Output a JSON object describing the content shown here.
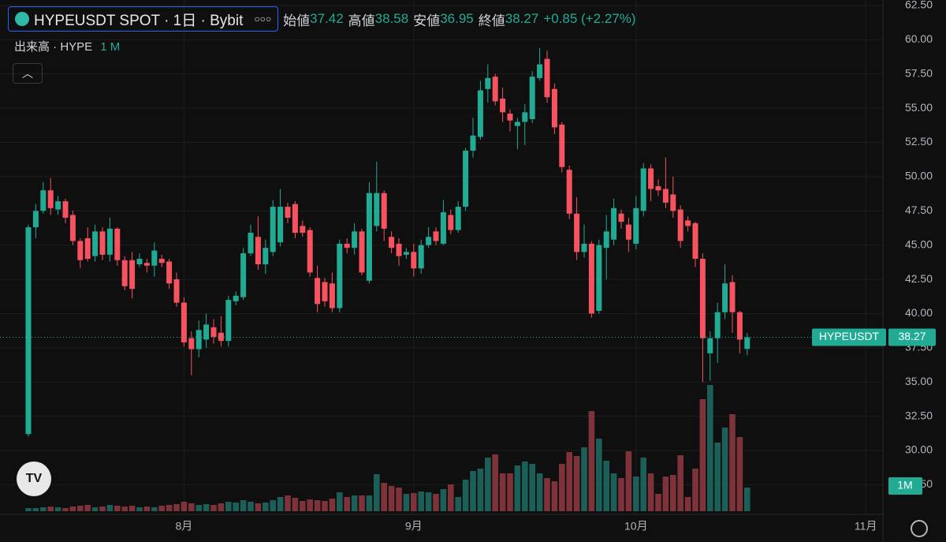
{
  "header": {
    "title": "HYPEUSDT SPOT · 1日 · Bybit",
    "ohlc": [
      {
        "label": "始値",
        "value": 37.42
      },
      {
        "label": "高値",
        "value": 38.58
      },
      {
        "label": "安値",
        "value": 36.95
      },
      {
        "label": "終値",
        "value": 38.27
      }
    ],
    "change": "+0.85 (+2.27%)",
    "volume_label": "出来高 · HYPE",
    "volume_interval": "1 M"
  },
  "chart_data": {
    "type": "candlestick",
    "symbol": "HYPEUSDT",
    "volume_badge": "1M",
    "up_color": "#22ab94",
    "down_color": "#f7525f",
    "volume_up_color": "#1c5f58",
    "volume_down_color": "#7d3339",
    "grid": true,
    "x": [
      0,
      1,
      2,
      3,
      4,
      5,
      6,
      7,
      8,
      9,
      10,
      11,
      12,
      13,
      14,
      15,
      16,
      17,
      18,
      19,
      20,
      21,
      22,
      23,
      24,
      25,
      26,
      27,
      28,
      29,
      30,
      31,
      32,
      33,
      34,
      35,
      36,
      37,
      38,
      39,
      40,
      41,
      42,
      43,
      44,
      45,
      46,
      47,
      48,
      49,
      50,
      51,
      52,
      53,
      54,
      55,
      56,
      57,
      58,
      59,
      60,
      61,
      62,
      63,
      64,
      65,
      66,
      67,
      68,
      69,
      70,
      71,
      72,
      73,
      74,
      75,
      76,
      77,
      78,
      79,
      80,
      81,
      82,
      83,
      84,
      85,
      86,
      87,
      88,
      89,
      90,
      91,
      92,
      93,
      94,
      95,
      96,
      97
    ],
    "open": [
      31.2,
      46.3,
      47.5,
      49.0,
      47.6,
      48.2,
      47.2,
      45.3,
      45.5,
      44.2,
      46.0,
      44.3,
      46.2,
      43.9,
      43.9,
      43.6,
      43.7,
      43.5,
      44.0,
      43.8,
      42.5,
      40.8,
      38.2,
      37.4,
      38.1,
      39.0,
      38.6,
      38.0,
      40.9,
      41.2,
      44.4,
      45.6,
      43.6,
      44.5,
      45.2,
      47.8,
      48.0,
      46.4,
      46.1,
      42.6,
      42.3,
      42.2,
      40.4,
      45.1,
      44.8,
      46.0,
      42.4,
      46.4,
      48.8,
      45.6,
      45.1,
      44.3,
      44.5,
      43.3,
      45.0,
      46.0,
      45.1,
      47.2,
      46.1,
      47.8,
      51.9,
      52.9,
      56.4,
      57.3,
      55.7,
      54.6,
      53.7,
      54.0,
      54.2,
      57.2,
      58.6,
      56.4,
      53.8,
      50.5,
      47.3,
      44.5,
      45.1,
      40.2,
      44.8,
      45.4,
      47.3,
      46.5,
      45.1,
      47.5,
      50.6,
      49.3,
      49.1,
      48.7,
      47.6,
      46.8,
      46.6,
      44.0,
      37.1,
      38.2,
      40.1,
      42.3,
      40.1,
      37.42
    ],
    "high": [
      46.5,
      48.0,
      49.6,
      49.9,
      48.6,
      48.4,
      47.5,
      45.5,
      46.3,
      46.5,
      46.3,
      47.0,
      46.3,
      44.2,
      44.5,
      44.4,
      44.0,
      45.2,
      44.3,
      44.0,
      43.0,
      41.2,
      38.7,
      39.5,
      40.0,
      39.6,
      39.8,
      41.3,
      41.6,
      44.8,
      46.5,
      47.1,
      45.4,
      48.3,
      49.1,
      48.1,
      48.2,
      46.8,
      46.3,
      43.5,
      42.6,
      43.0,
      45.4,
      45.5,
      46.6,
      46.2,
      49.6,
      51.1,
      49.0,
      46.0,
      45.5,
      44.8,
      45.1,
      45.4,
      46.3,
      46.3,
      48.3,
      47.6,
      48.2,
      52.1,
      54.3,
      57.0,
      58.2,
      57.5,
      56.5,
      54.9,
      54.3,
      55.3,
      57.7,
      59.4,
      59.2,
      56.8,
      54.0,
      50.8,
      48.5,
      46.5,
      45.3,
      45.4,
      47.2,
      48.4,
      47.6,
      47.0,
      48.6,
      51.0,
      50.9,
      49.8,
      51.4,
      50.0,
      47.9,
      47.1,
      46.7,
      44.4,
      38.7,
      40.8,
      43.6,
      42.8,
      40.2,
      38.58
    ],
    "low": [
      31.0,
      45.5,
      47.3,
      47.2,
      47.2,
      46.6,
      45.0,
      43.3,
      43.8,
      43.8,
      43.9,
      43.8,
      43.5,
      41.7,
      41.1,
      43.4,
      43.0,
      42.7,
      43.4,
      41.8,
      40.5,
      37.6,
      35.5,
      36.8,
      37.5,
      37.8,
      37.6,
      37.6,
      40.6,
      41.0,
      44.2,
      43.2,
      42.9,
      44.2,
      44.9,
      46.6,
      45.5,
      45.6,
      42.7,
      40.1,
      40.5,
      40.1,
      40.1,
      44.4,
      44.3,
      42.8,
      42.2,
      46.0,
      45.3,
      44.4,
      43.5,
      44.0,
      42.7,
      42.9,
      44.8,
      45.0,
      45.0,
      45.8,
      45.9,
      47.5,
      51.4,
      52.7,
      55.4,
      55.2,
      54.0,
      53.3,
      52.0,
      52.3,
      53.9,
      57.0,
      55.4,
      53.1,
      50.3,
      46.9,
      43.9,
      44.1,
      39.7,
      40.0,
      42.5,
      45.0,
      46.2,
      44.5,
      44.7,
      47.1,
      48.2,
      48.6,
      47.7,
      47.0,
      44.8,
      46.0,
      43.4,
      35.0,
      35.1,
      36.4,
      39.6,
      38.6,
      37.1,
      36.95
    ],
    "close": [
      46.3,
      47.5,
      49.0,
      47.7,
      48.2,
      47.0,
      45.3,
      43.9,
      44.0,
      46.0,
      44.3,
      46.2,
      43.9,
      42.0,
      41.8,
      44.0,
      43.5,
      44.6,
      43.7,
      42.2,
      40.8,
      37.9,
      37.4,
      38.8,
      39.2,
      38.3,
      38.0,
      41.0,
      41.3,
      44.4,
      45.9,
      43.6,
      44.8,
      47.8,
      47.8,
      47.0,
      45.9,
      45.9,
      43.0,
      40.7,
      40.9,
      40.4,
      45.1,
      44.8,
      46.0,
      43.0,
      48.8,
      48.8,
      46.2,
      44.8,
      44.2,
      44.5,
      43.3,
      45.0,
      45.6,
      45.3,
      47.4,
      46.1,
      47.8,
      51.9,
      53.0,
      56.3,
      57.2,
      55.5,
      54.7,
      54.1,
      54.0,
      54.7,
      57.3,
      58.2,
      55.8,
      53.6,
      50.7,
      47.3,
      44.5,
      45.1,
      40.0,
      45.0,
      46.0,
      47.7,
      46.7,
      45.4,
      47.7,
      50.6,
      49.1,
      49.0,
      48.1,
      47.5,
      45.3,
      46.4,
      44.0,
      38.2,
      38.2,
      40.1,
      42.2,
      40.1,
      38.1,
      38.27
    ],
    "volume": [
      4,
      4,
      5,
      6,
      5,
      4,
      6,
      7,
      8,
      5,
      6,
      8,
      7,
      6,
      7,
      5,
      6,
      5,
      7,
      8,
      9,
      12,
      10,
      8,
      9,
      8,
      10,
      12,
      11,
      14,
      12,
      10,
      11,
      14,
      18,
      20,
      17,
      13,
      15,
      14,
      13,
      16,
      24,
      18,
      20,
      20,
      20,
      47,
      36,
      32,
      30,
      22,
      23,
      25,
      24,
      22,
      28,
      34,
      18,
      40,
      51,
      54,
      68,
      72,
      48,
      48,
      58,
      63,
      60,
      48,
      42,
      38,
      60,
      75,
      70,
      81,
      127,
      92,
      64,
      48,
      42,
      76,
      44,
      68,
      48,
      22,
      44,
      46,
      71,
      18,
      54,
      142,
      160,
      87,
      106,
      123,
      94,
      30
    ],
    "vlim": [
      0,
      175
    ],
    "xlim": [
      -3.83,
      115.32
    ],
    "xticks": [
      {
        "value": 21,
        "label": "8月"
      },
      {
        "value": 52,
        "label": "9月"
      },
      {
        "value": 82,
        "label": "10月"
      },
      {
        "value": 113,
        "label": "11月"
      }
    ],
    "ylim": [
      25.45,
      62.9
    ],
    "yticks": [
      {
        "value": 27.5,
        "label": "27.50"
      },
      {
        "value": 30,
        "label": "30.00"
      },
      {
        "value": 32.5,
        "label": "32.50"
      },
      {
        "value": 35,
        "label": "35.00"
      },
      {
        "value": 37.5,
        "label": "37.50"
      },
      {
        "value": 40,
        "label": "40.00"
      },
      {
        "value": 42.5,
        "label": "42.50"
      },
      {
        "value": 45,
        "label": "45.00"
      },
      {
        "value": 47.5,
        "label": "47.50"
      },
      {
        "value": 50,
        "label": "50.00"
      },
      {
        "value": 52.5,
        "label": "52.50"
      },
      {
        "value": 55,
        "label": "55.00"
      },
      {
        "value": 57.5,
        "label": "57.50"
      },
      {
        "value": 60,
        "label": "60.00"
      },
      {
        "value": 62.5,
        "label": "62.50"
      }
    ]
  }
}
